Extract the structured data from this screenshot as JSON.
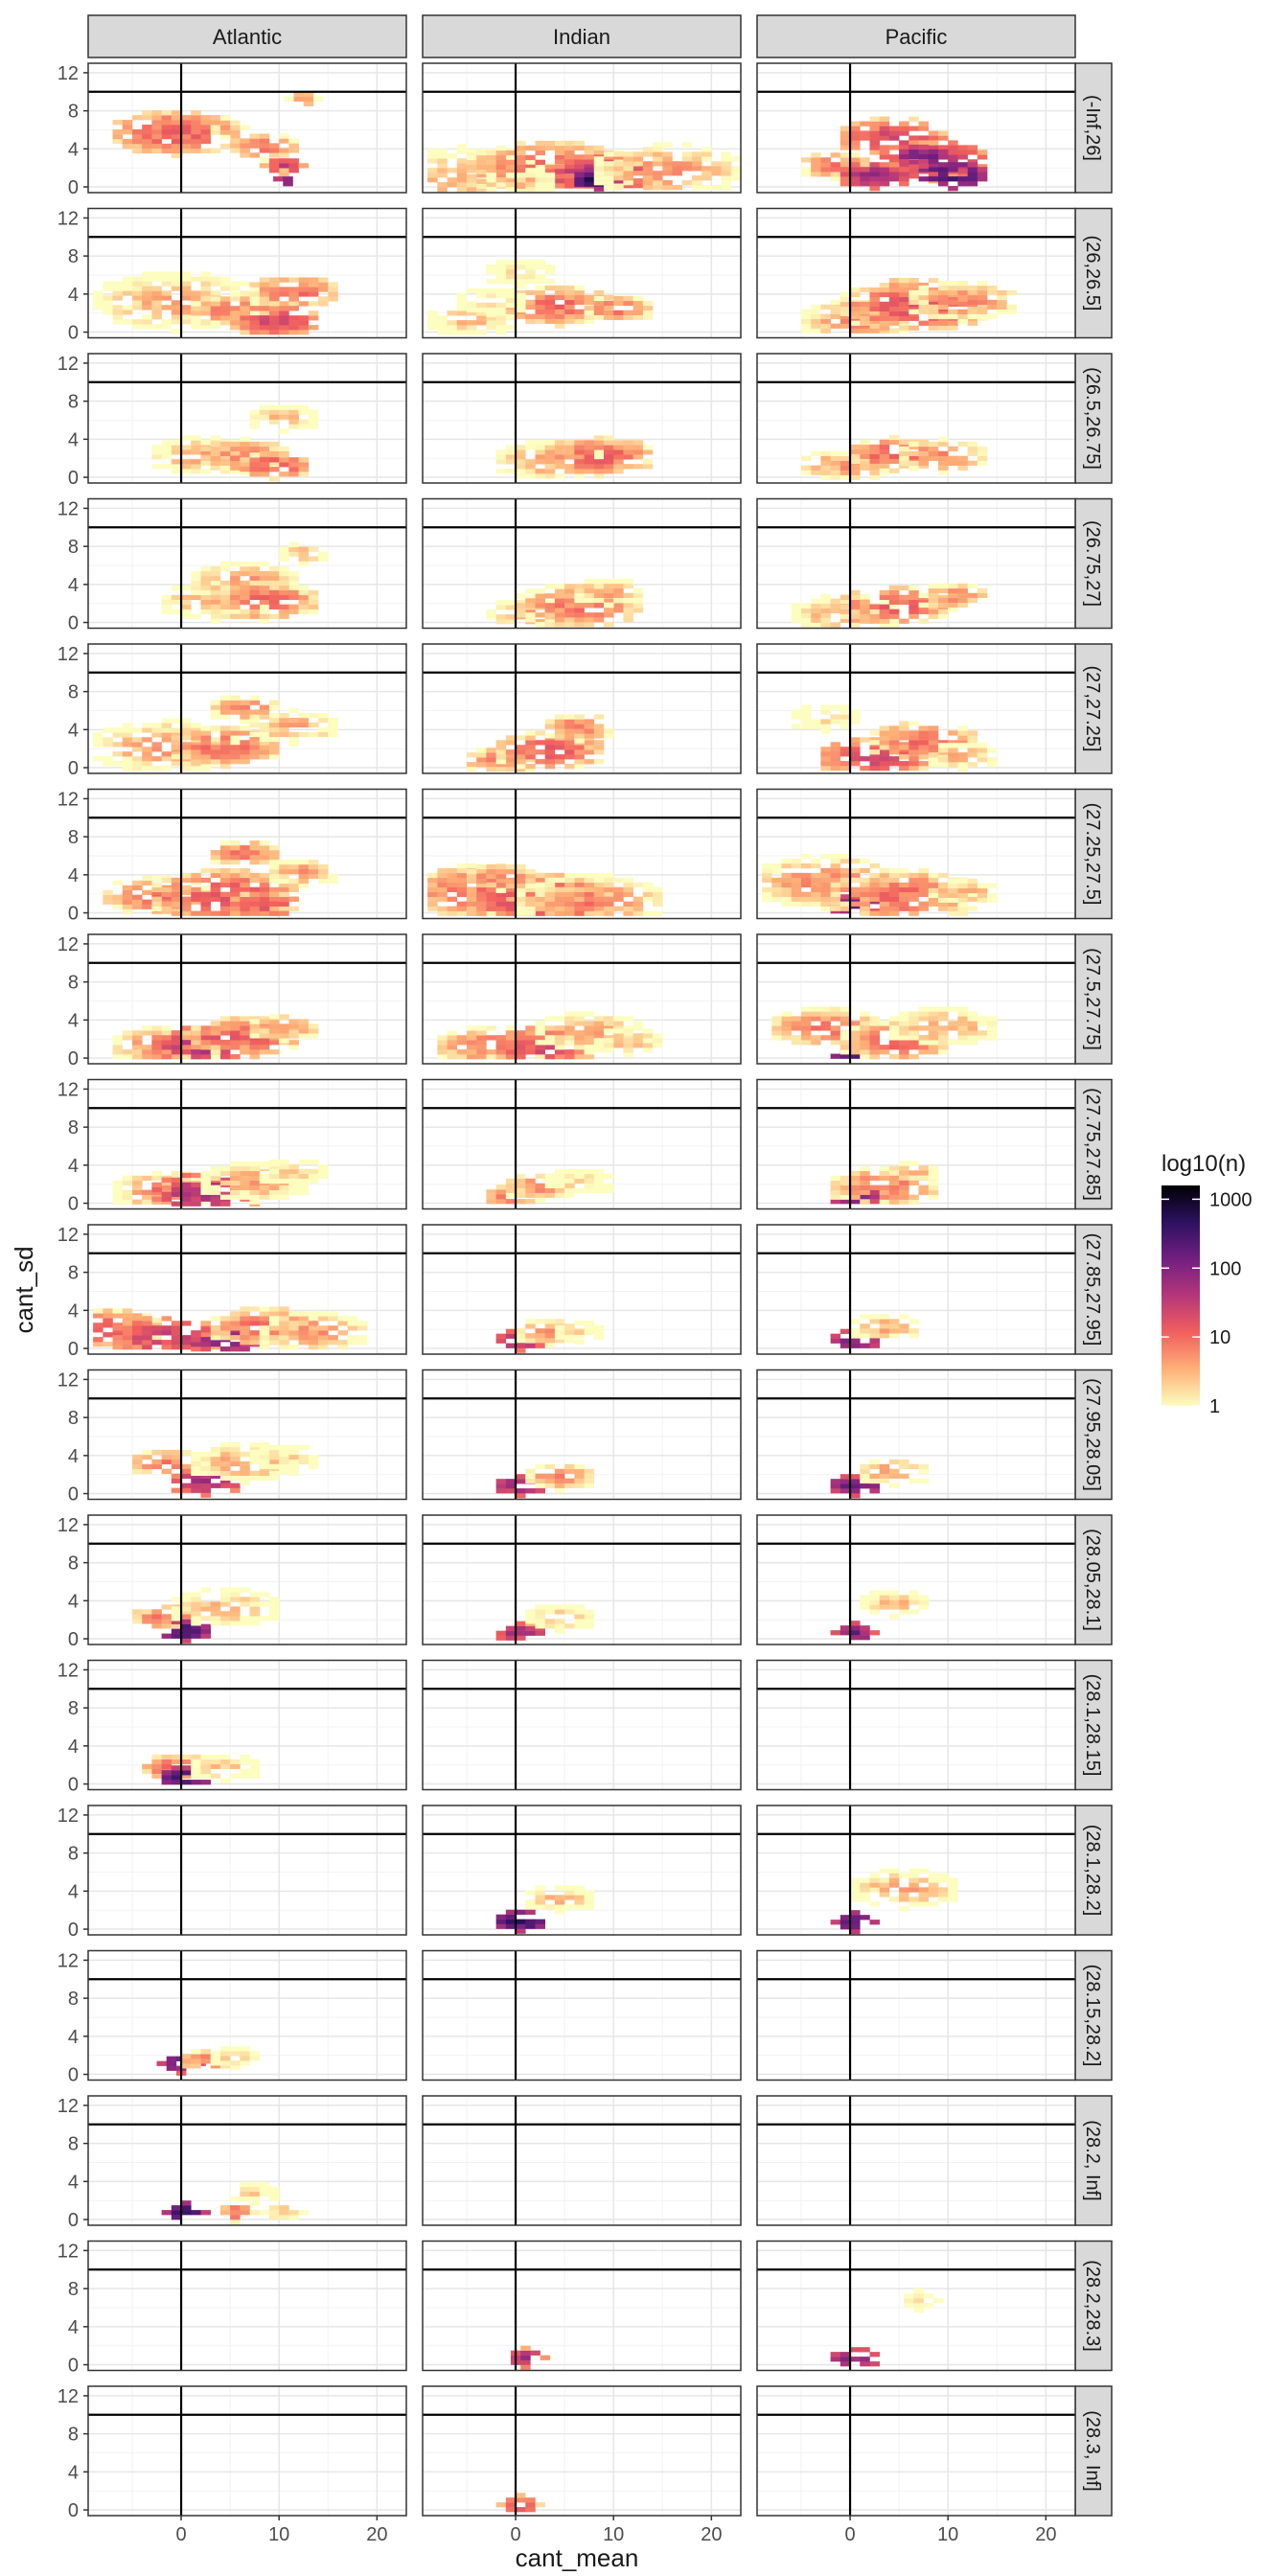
{
  "chart_data": {
    "type": "heatmap",
    "title": "",
    "xlabel": "cant_mean",
    "ylabel": "cant_sd",
    "columns": [
      "Atlantic",
      "Indian",
      "Pacific"
    ],
    "rows": [
      "(-Inf,26]",
      "(26,26.5]",
      "(26.5,26.75]",
      "(26.75,27]",
      "(27,27.25]",
      "(27.25,27.5]",
      "(27.5,27.75]",
      "(27.75,27.85]",
      "(27.85,27.95]",
      "(27.95,28.05]",
      "(28.05,28.1]",
      "(28.1,28.15]",
      "(28.1,28.2]",
      "(28.15,28.2]",
      "(28.2, Inf]",
      "(28.2,28.3]",
      "(28.3, Inf]"
    ],
    "xlim": [
      -9.5,
      23
    ],
    "ylim": [
      -0.6,
      13
    ],
    "x_ticks": [
      0,
      10,
      20
    ],
    "x_tick_labels": [
      "0",
      "10",
      "20"
    ],
    "y_ticks": [
      0,
      4,
      8,
      12
    ],
    "y_tick_labels": [
      "0",
      "4",
      "8",
      "12"
    ],
    "reference_lines": {
      "vertical_x": 0,
      "horizontal_y": 10
    },
    "legend": {
      "title": "log10(n)",
      "position": "right",
      "scale": "log10",
      "breaks": [
        1,
        10,
        100,
        1000
      ],
      "break_labels": [
        "1",
        "10",
        "100",
        "1000"
      ],
      "colors": [
        "#fcfdbf",
        "#feb078",
        "#f1605d",
        "#b5367a",
        "#721f81",
        "#2d1160",
        "#000004"
      ]
    },
    "grid": true,
    "cells": [
      [
        [
          [
            -1,
            5.5,
            7,
            13
          ],
          [
            12,
            9,
            1.5,
            5.5
          ],
          [
            10,
            2,
            1,
            8
          ],
          [
            8,
            4,
            4,
            8
          ],
          [
            10,
            2,
            2,
            30
          ],
          [
            10,
            0.6,
            0.6,
            300
          ],
          [
            4,
            6,
            2,
            4
          ]
        ],
        [
          [
            -1,
            3,
            9,
            4
          ],
          [
            5,
            2,
            5,
            8
          ],
          [
            11,
            4,
            5,
            10
          ],
          [
            9,
            1,
            5,
            20
          ]
        ],
        [
          [
            2,
            2,
            6,
            4
          ],
          [
            6,
            2,
            5,
            8
          ],
          [
            9,
            1,
            4,
            14
          ],
          [
            10,
            6,
            4,
            3
          ]
        ],
        [
          [
            3,
            2,
            6,
            4
          ],
          [
            6,
            4,
            6,
            5
          ],
          [
            8,
            2,
            6,
            10
          ],
          [
            12,
            7,
            3,
            3
          ]
        ],
        [
          [
            -2,
            2,
            8,
            5
          ],
          [
            4,
            2,
            6,
            10
          ],
          [
            6,
            6,
            4,
            6
          ],
          [
            11,
            4,
            5,
            4
          ]
        ],
        [
          [
            -3,
            1.5,
            6,
            8
          ],
          [
            4,
            1.5,
            8,
            15
          ],
          [
            6,
            6,
            4,
            8
          ],
          [
            12,
            4,
            4,
            5
          ],
          [
            8,
            0.6,
            4,
            20
          ]
        ],
        [
          [
            -2,
            1,
            6,
            6
          ],
          [
            2,
            1,
            6,
            40
          ],
          [
            6,
            2,
            6,
            12
          ],
          [
            10,
            3,
            4,
            6
          ]
        ],
        [
          [
            -2,
            1,
            6,
            6
          ],
          [
            2,
            0.8,
            6,
            50
          ],
          [
            7,
            2,
            6,
            4
          ],
          [
            11,
            3,
            4,
            2
          ]
        ],
        [
          [
            -8,
            1.8,
            6,
            12
          ],
          [
            -2,
            1,
            6,
            30
          ],
          [
            4,
            0.6,
            4,
            120
          ],
          [
            8,
            2,
            6,
            10
          ],
          [
            13,
            1.5,
            6,
            5
          ]
        ],
        [
          [
            -2,
            3,
            4,
            8
          ],
          [
            2,
            1,
            4,
            60
          ],
          [
            6,
            3,
            6,
            4
          ],
          [
            10,
            3.5,
            4,
            2
          ]
        ],
        [
          [
            -2,
            2,
            4,
            8
          ],
          [
            0,
            0.6,
            3,
            300
          ],
          [
            4,
            3,
            6,
            3
          ]
        ],
        [
          [
            -1,
            1.5,
            4,
            10
          ],
          [
            0,
            0.5,
            3,
            300
          ],
          [
            4,
            1.5,
            4,
            3
          ]
        ],
        [],
        [
          [
            -0.5,
            0.9,
            2,
            200
          ],
          [
            2,
            1.2,
            3,
            8
          ],
          [
            5,
            1.5,
            3,
            2
          ]
        ],
        [
          [
            0,
            0.5,
            2,
            500
          ],
          [
            5,
            0.5,
            2,
            10
          ],
          [
            10,
            0.5,
            2,
            3
          ],
          [
            7,
            2.5,
            3,
            2
          ]
        ],
        [],
        []
      ],
      [
        [
          [
            -6,
            0.5,
            10,
            3
          ],
          [
            3,
            1.5,
            9,
            10
          ],
          [
            8,
            1,
            6,
            40
          ],
          [
            8,
            0.6,
            3,
            600
          ],
          [
            15,
            1.5,
            8,
            5
          ],
          [
            0,
            0.4,
            4,
            3
          ]
        ],
        [
          [
            -5,
            1,
            5,
            3
          ],
          [
            4,
            2.5,
            6,
            10
          ],
          [
            10,
            2.2,
            4,
            8
          ],
          [
            0,
            6,
            4,
            2
          ],
          [
            -3,
            3,
            4,
            2
          ]
        ],
        [
          [
            3,
            1.5,
            6,
            5
          ],
          [
            8,
            2,
            6,
            12
          ]
        ],
        [
          [
            1,
            0.6,
            5,
            4
          ],
          [
            6,
            1.5,
            7,
            8
          ],
          [
            9,
            3,
            4,
            4
          ]
        ],
        [
          [
            -2,
            0.5,
            4,
            8
          ],
          [
            3,
            1.5,
            6,
            12
          ],
          [
            6,
            4,
            4,
            8
          ]
        ],
        [
          [
            -4,
            2,
            8,
            10
          ],
          [
            2,
            1,
            8,
            20
          ],
          [
            7,
            1,
            8,
            6
          ],
          [
            -2,
            3.5,
            4,
            8
          ]
        ],
        [
          [
            -3,
            1,
            6,
            8
          ],
          [
            2,
            1,
            6,
            20
          ],
          [
            7,
            2.5,
            6,
            4
          ],
          [
            11,
            1.5,
            4,
            3
          ]
        ],
        [
          [
            -1,
            0.5,
            3,
            10
          ],
          [
            2,
            1.5,
            4,
            6
          ],
          [
            6,
            2,
            4,
            2
          ]
        ],
        [
          [
            0,
            0.6,
            3,
            60
          ],
          [
            3,
            1.5,
            4,
            5
          ],
          [
            6,
            1.5,
            3,
            2
          ]
        ],
        [
          [
            0,
            0.6,
            3,
            80
          ],
          [
            4,
            1.5,
            4,
            6
          ]
        ],
        [
          [
            0,
            0.4,
            3,
            50
          ],
          [
            4,
            2,
            4,
            3
          ]
        ],
        [],
        [
          [
            0,
            0.6,
            3,
            400
          ],
          [
            4,
            3,
            4,
            3
          ]
        ],
        [],
        [],
        [
          [
            0.5,
            0.5,
            2,
            50
          ]
        ],
        [
          [
            0,
            0.3,
            2,
            20
          ]
        ]
      ],
      [
        [
          [
            -2,
            2,
            4,
            8
          ],
          [
            4,
            5,
            6,
            20
          ],
          [
            8,
            2.5,
            6,
            40
          ],
          [
            10,
            1,
            4,
            300
          ],
          [
            2,
            1,
            4,
            60
          ],
          [
            7,
            3,
            3,
            150
          ]
        ],
        [
          [
            0,
            1,
            6,
            6
          ],
          [
            6,
            2.5,
            8,
            15
          ],
          [
            11,
            3,
            6,
            6
          ]
        ],
        [
          [
            -1,
            1,
            5,
            5
          ],
          [
            4,
            2.2,
            5,
            12
          ],
          [
            9,
            2,
            5,
            6
          ]
        ],
        [
          [
            -1,
            0.6,
            6,
            4
          ],
          [
            4,
            1.5,
            6,
            12
          ],
          [
            10,
            2.5,
            4,
            6
          ]
        ],
        [
          [
            -3,
            5,
            4,
            2
          ],
          [
            2,
            0.8,
            6,
            20
          ],
          [
            7,
            2.5,
            6,
            10
          ],
          [
            11,
            1,
            4,
            4
          ]
        ],
        [
          [
            -3,
            3,
            8,
            6
          ],
          [
            0,
            0.5,
            3,
            150
          ],
          [
            5,
            1.5,
            8,
            10
          ],
          [
            11,
            2,
            4,
            4
          ]
        ],
        [
          [
            -3,
            3,
            6,
            8
          ],
          [
            0,
            0.5,
            3,
            300
          ],
          [
            4,
            1.5,
            6,
            10
          ],
          [
            9,
            3,
            6,
            4
          ]
        ],
        [
          [
            0,
            0.5,
            3,
            150
          ],
          [
            3,
            1.5,
            6,
            8
          ],
          [
            6,
            3,
            3,
            3
          ]
        ],
        [
          [
            0,
            0.6,
            3,
            120
          ],
          [
            3,
            2,
            4,
            4
          ]
        ],
        [
          [
            0,
            0.6,
            3,
            150
          ],
          [
            4,
            2,
            4,
            5
          ]
        ],
        [
          [
            0,
            0.4,
            2,
            150
          ],
          [
            4,
            3.5,
            4,
            3
          ]
        ],
        [],
        [
          [
            0,
            0.5,
            2,
            300
          ],
          [
            5,
            4,
            6,
            4
          ]
        ],
        [],
        [],
        [
          [
            0,
            0.4,
            3,
            100
          ],
          [
            6.5,
            6.5,
            2,
            1.5
          ]
        ],
        []
      ]
    ]
  }
}
